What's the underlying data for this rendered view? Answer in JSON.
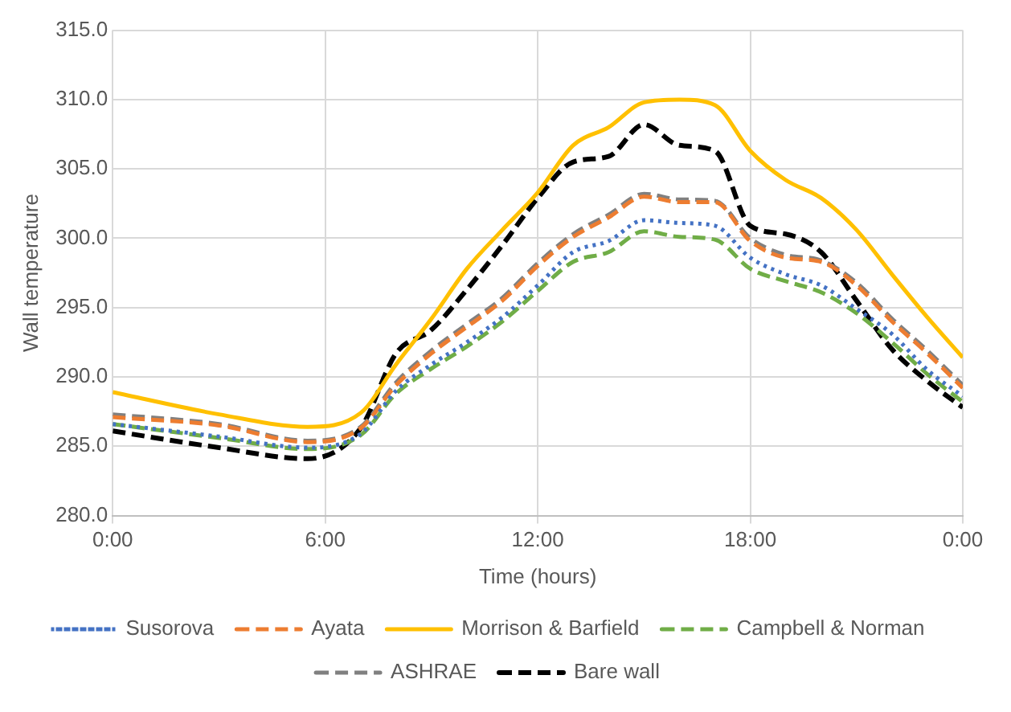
{
  "chart_data": {
    "type": "line",
    "xlabel": "Time (hours)",
    "ylabel": "Wall temperature",
    "x": [
      0,
      3,
      5.5,
      7,
      8,
      9,
      10,
      11,
      12,
      13,
      14,
      15,
      16,
      17,
      18,
      19,
      20,
      21,
      22,
      23,
      24
    ],
    "xlim": [
      0,
      24
    ],
    "xticks": [
      {
        "value": 0,
        "label": "0:00"
      },
      {
        "value": 6,
        "label": "6:00"
      },
      {
        "value": 12,
        "label": "12:00"
      },
      {
        "value": 18,
        "label": "18:00"
      },
      {
        "value": 24,
        "label": "0:00"
      }
    ],
    "ylim": [
      280,
      315
    ],
    "yticks": [
      {
        "value": 280,
        "label": "280.0"
      },
      {
        "value": 285,
        "label": "285.0"
      },
      {
        "value": 290,
        "label": "290.0"
      },
      {
        "value": 295,
        "label": "295.0"
      },
      {
        "value": 300,
        "label": "300.0"
      },
      {
        "value": 305,
        "label": "305.0"
      },
      {
        "value": 310,
        "label": "310.0"
      },
      {
        "value": 315,
        "label": "315.0"
      }
    ],
    "grid": true,
    "legend": "bottom",
    "marker": "none",
    "series": [
      {
        "name": "Susorova",
        "color": "#4472c4",
        "line_style": "dotted",
        "values": [
          286.6,
          285.7,
          284.9,
          285.9,
          289.0,
          290.9,
          292.5,
          294.3,
          296.6,
          299.0,
          299.8,
          301.3,
          301.1,
          300.9,
          298.6,
          297.4,
          296.6,
          294.9,
          293.1,
          290.5,
          288.6
        ]
      },
      {
        "name": "Ayata",
        "color": "#ed7d31",
        "line_style": "dashed",
        "values": [
          287.1,
          286.5,
          285.3,
          286.3,
          289.4,
          291.7,
          293.6,
          295.5,
          298.0,
          300.1,
          301.5,
          303.0,
          302.6,
          302.6,
          299.8,
          298.6,
          298.3,
          296.6,
          294.0,
          291.7,
          289.2
        ]
      },
      {
        "name": "Morrison & Barfield",
        "color": "#ffc000",
        "line_style": "solid",
        "values": [
          288.9,
          287.3,
          286.4,
          287.4,
          290.9,
          294.2,
          297.8,
          300.6,
          303.3,
          306.7,
          308.0,
          309.8,
          310.0,
          309.6,
          306.3,
          304.2,
          302.9,
          300.6,
          297.4,
          294.3,
          291.4
        ]
      },
      {
        "name": "Campbell & Norman",
        "color": "#70ad47",
        "line_style": "dashed",
        "values": [
          286.6,
          285.6,
          284.8,
          285.8,
          288.8,
          290.6,
          292.2,
          294.0,
          296.2,
          298.3,
          299.0,
          300.5,
          300.1,
          299.9,
          297.8,
          296.9,
          296.1,
          294.6,
          292.5,
          290.2,
          288.2
        ]
      },
      {
        "name": "ASHRAE",
        "color": "#808080",
        "line_style": "dashed",
        "values": [
          287.3,
          286.6,
          285.4,
          286.4,
          289.6,
          291.9,
          293.8,
          295.7,
          298.2,
          300.3,
          301.7,
          303.2,
          302.8,
          302.7,
          300.0,
          298.8,
          298.4,
          296.8,
          294.2,
          291.9,
          289.4
        ]
      },
      {
        "name": "Bare wall",
        "color": "#000000",
        "line_style": "dashed",
        "values": [
          286.1,
          284.9,
          284.1,
          286.3,
          291.7,
          293.4,
          296.3,
          299.5,
          302.9,
          305.5,
          305.9,
          308.2,
          306.7,
          306.3,
          300.9,
          300.3,
          299.0,
          295.5,
          292.0,
          289.7,
          287.8
        ]
      }
    ]
  }
}
